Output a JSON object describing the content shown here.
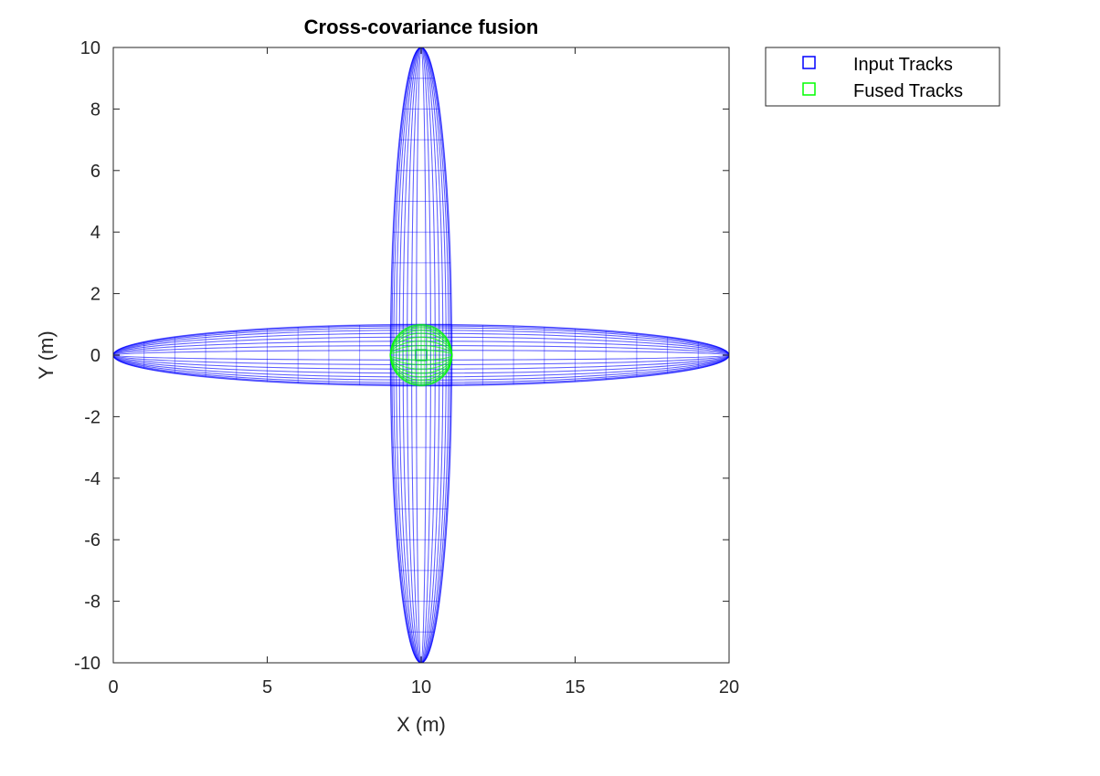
{
  "chart_data": {
    "type": "scatter",
    "title": "Cross-covariance fusion",
    "xlabel": "X (m)",
    "ylabel": "Y (m)",
    "xlim": [
      0,
      20
    ],
    "ylim": [
      -10,
      10
    ],
    "xticks": [
      0,
      5,
      10,
      15,
      20
    ],
    "yticks": [
      -10,
      -8,
      -6,
      -4,
      -2,
      0,
      2,
      4,
      6,
      8,
      10
    ],
    "grid": false,
    "legend_position": "outside-top-right",
    "series": [
      {
        "name": "Input Tracks",
        "color": "#0000ff",
        "marker": "square",
        "ellipses": [
          {
            "center": [
              10,
              0
            ],
            "semi_axes": [
              10,
              1
            ]
          },
          {
            "center": [
              10,
              0
            ],
            "semi_axes": [
              1,
              10
            ]
          }
        ]
      },
      {
        "name": "Fused Tracks",
        "color": "#00ff00",
        "marker": "square",
        "ellipses": [
          {
            "center": [
              10,
              0
            ],
            "semi_axes": [
              1,
              1
            ]
          }
        ]
      }
    ]
  }
}
